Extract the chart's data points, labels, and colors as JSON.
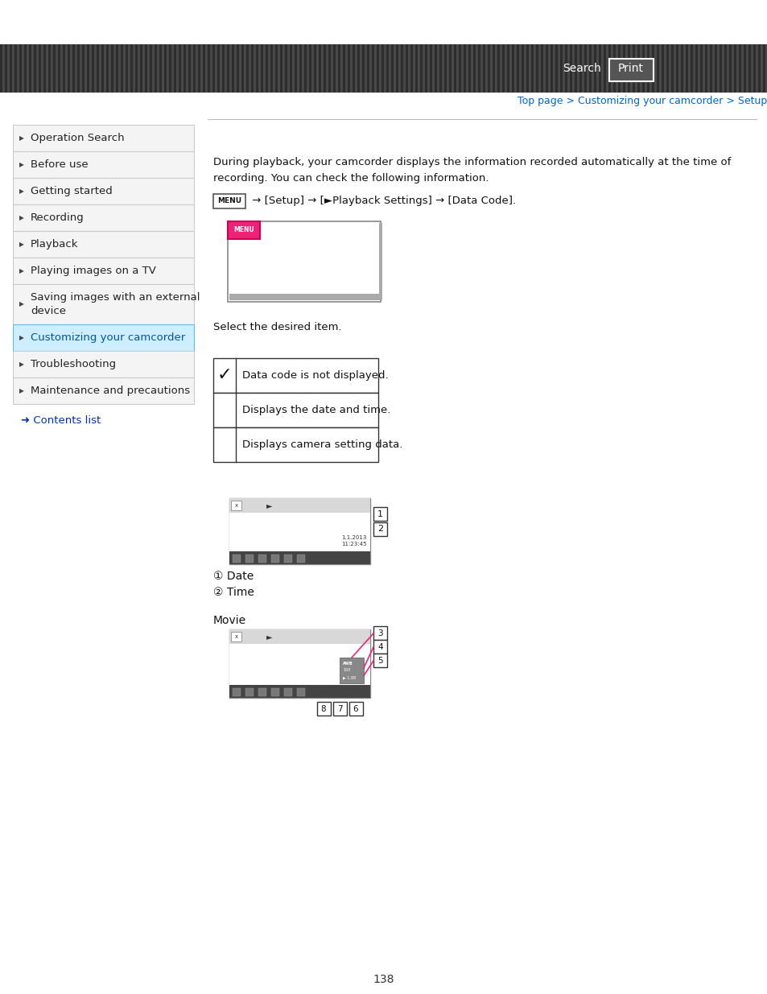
{
  "page_bg": "#ffffff",
  "header_stripe_colors": [
    "#2d2d2d",
    "#484848"
  ],
  "breadcrumb": "Top page > Customizing your camcorder > Setup > Data Code",
  "breadcrumb_color": "#0066cc",
  "sidebar_items": [
    "Operation Search",
    "Before use",
    "Getting started",
    "Recording",
    "Playback",
    "Playing images on a TV",
    "Saving images with an external",
    "device",
    "Customizing your camcorder",
    "Troubleshooting",
    "Maintenance and precautions"
  ],
  "sidebar_active_index": 8,
  "sidebar_active_bg": "#cceeff",
  "sidebar_active_border": "#66bbdd",
  "sidebar_inactive_bg": "#f4f4f4",
  "sidebar_border": "#cccccc",
  "contents_list_text": "➜ Contents list",
  "contents_list_color": "#0033aa",
  "main_text1": "During playback, your camcorder displays the information recorded automatically at the time of",
  "main_text2": "recording. You can check the following information.",
  "menu_instruction": " → [Setup] → [►Playback Settings] → [Data Code].",
  "select_text": "Select the desired item.",
  "table_rows": [
    [
      "✓",
      "Data code is not displayed."
    ],
    [
      "",
      "Displays the date and time."
    ],
    [
      "",
      "Displays camera setting data."
    ]
  ],
  "label1_text": "① Date",
  "label2_text": "② Time",
  "movie_label": "Movie",
  "page_number": "138",
  "divider_color": "#bbbbbb"
}
